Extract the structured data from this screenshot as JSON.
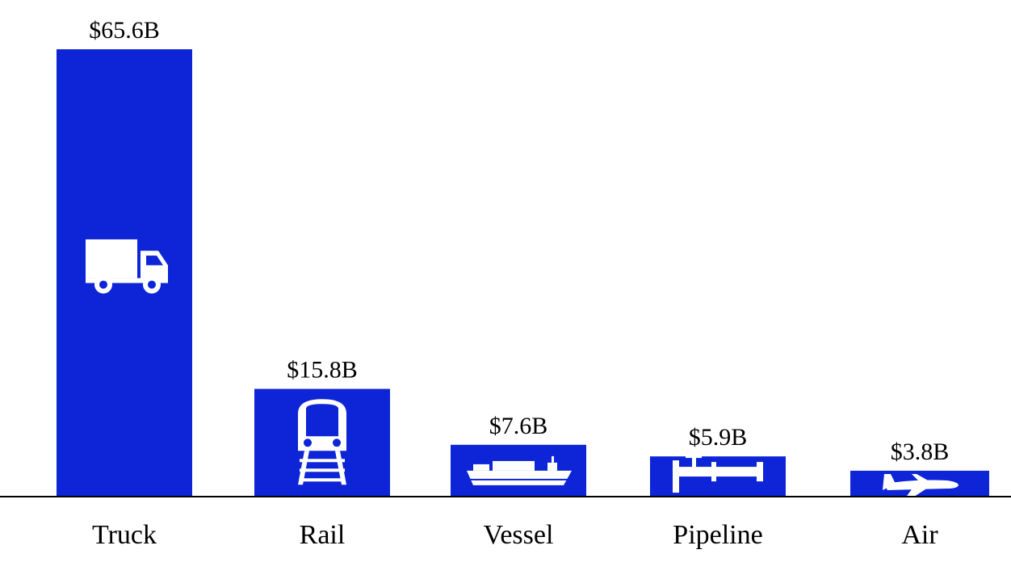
{
  "chart_data": {
    "type": "bar",
    "title": "",
    "xlabel": "",
    "ylabel": "",
    "categories": [
      "Truck",
      "Rail",
      "Vessel",
      "Pipeline",
      "Air"
    ],
    "values": [
      65.6,
      15.8,
      7.6,
      5.9,
      3.8
    ],
    "value_labels": [
      "$65.6B",
      "$15.8B",
      "$7.6B",
      "$5.9B",
      "$3.8B"
    ],
    "icons": [
      "truck-icon",
      "train-icon",
      "ship-icon",
      "pipeline-icon",
      "airplane-icon"
    ],
    "ylim": [
      0,
      65.6
    ],
    "grid": false,
    "legend": "none",
    "bar_color": "#0d25d6",
    "icon_color": "#ffffff",
    "axis_color": "#000000"
  }
}
